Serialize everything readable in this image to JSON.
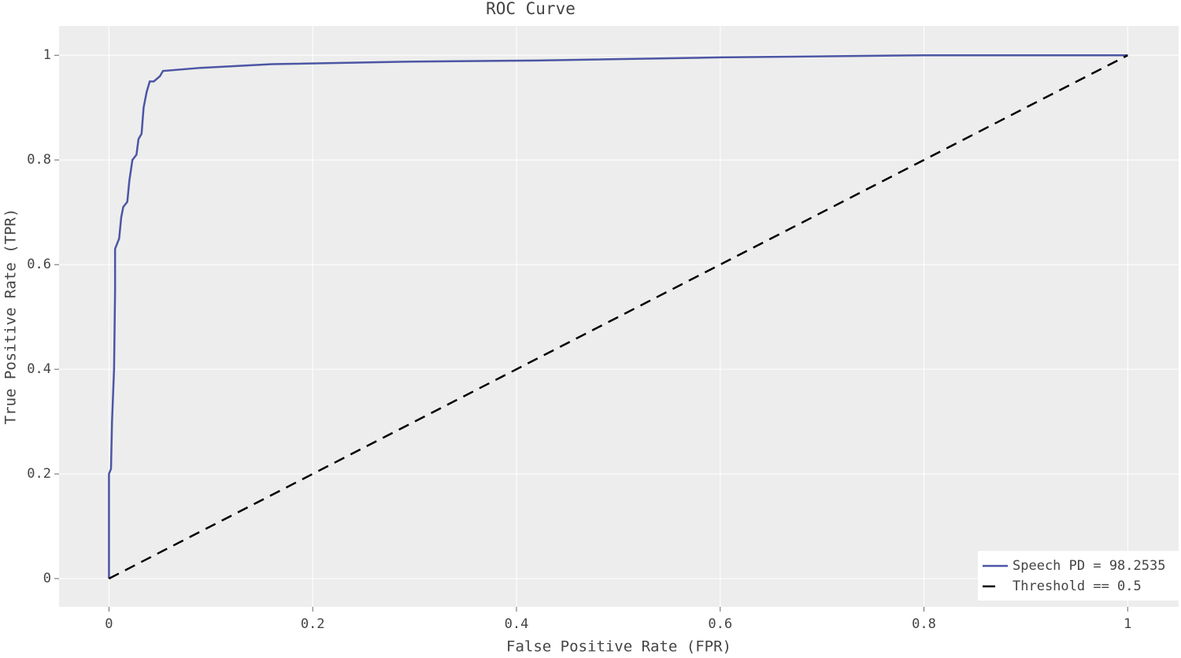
{
  "chart_data": {
    "type": "line",
    "title": "ROC Curve",
    "xlabel": "False Positive Rate (FPR)",
    "ylabel": "True Positive Rate (TPR)",
    "xlim": [
      -0.049,
      1.05
    ],
    "ylim": [
      -0.054,
      1.056
    ],
    "xticks": [
      0,
      0.2,
      0.4,
      0.6,
      0.8,
      1
    ],
    "yticks": [
      0,
      0.2,
      0.4,
      0.6,
      0.8,
      1
    ],
    "grid": true,
    "legend": "lower right",
    "series": [
      {
        "name": "Speech PD = 98.2535",
        "color": "#4c56a4",
        "dash": false,
        "x": [
          0,
          0,
          0.002,
          0.003,
          0.005,
          0.006,
          0.006,
          0.01,
          0.012,
          0.014,
          0.018,
          0.02,
          0.023,
          0.027,
          0.029,
          0.032,
          0.034,
          0.037,
          0.04,
          0.044,
          0.05,
          0.053,
          0.09,
          0.16,
          0.3,
          0.42,
          0.6,
          0.8,
          1
        ],
        "values": [
          0,
          0.2,
          0.21,
          0.3,
          0.4,
          0.55,
          0.63,
          0.65,
          0.69,
          0.71,
          0.72,
          0.76,
          0.8,
          0.81,
          0.84,
          0.85,
          0.9,
          0.93,
          0.95,
          0.95,
          0.96,
          0.97,
          0.976,
          0.983,
          0.988,
          0.99,
          0.996,
          1,
          1
        ]
      },
      {
        "name": "Threshold == 0.5",
        "color": "#000000",
        "dash": true,
        "x": [
          0,
          1
        ],
        "values": [
          0,
          1
        ]
      }
    ]
  }
}
